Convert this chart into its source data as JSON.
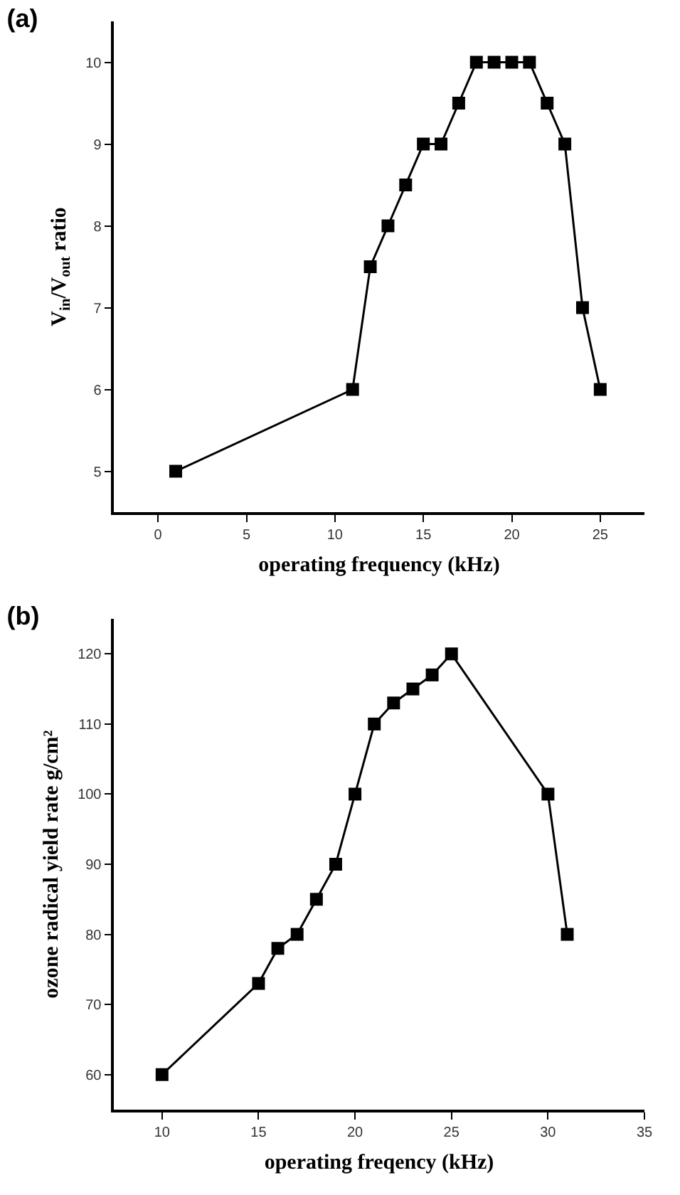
{
  "chart_data": [
    {
      "type": "line",
      "title": "(a)",
      "xlabel": "operating frequency (kHz)",
      "ylabel": "V$_{in}$/V$_{out}$ ratio",
      "marker": "square",
      "line_style": "solid",
      "grid": false,
      "legend": false,
      "x": [
        1,
        11,
        12,
        13,
        14,
        15,
        16,
        17,
        18,
        19,
        20,
        21,
        22,
        23,
        24,
        25
      ],
      "series": [
        {
          "color": "#000000",
          "values": [
            5,
            6,
            7.5,
            8,
            8.5,
            9,
            9,
            9.5,
            10,
            10,
            10,
            10,
            9.5,
            9,
            7,
            6
          ]
        }
      ],
      "xlim": [
        -2.5,
        27.5
      ],
      "xticks": [
        0,
        5,
        10,
        15,
        20,
        25
      ],
      "ylim": [
        4.5,
        10.5
      ],
      "yticks": [
        5,
        6,
        7,
        8,
        9,
        10
      ]
    },
    {
      "type": "line",
      "title": "(b)",
      "xlabel": "operating freqency (kHz)",
      "ylabel": "ozone radical yield rate g/cm²",
      "marker": "square",
      "line_style": "solid",
      "grid": false,
      "legend": false,
      "x": [
        10,
        15,
        16,
        17,
        18,
        19,
        20,
        21,
        22,
        23,
        24,
        25,
        30,
        31
      ],
      "series": [
        {
          "color": "#000000",
          "values": [
            60,
            73,
            78,
            80,
            85,
            90,
            100,
            110,
            113,
            115,
            117,
            120,
            100,
            80
          ]
        }
      ],
      "xlim": [
        7.5,
        35
      ],
      "xticks": [
        10,
        15,
        20,
        25,
        30,
        35
      ],
      "ylim": [
        55,
        125
      ],
      "yticks": [
        60,
        70,
        80,
        90,
        100,
        110,
        120
      ]
    }
  ]
}
